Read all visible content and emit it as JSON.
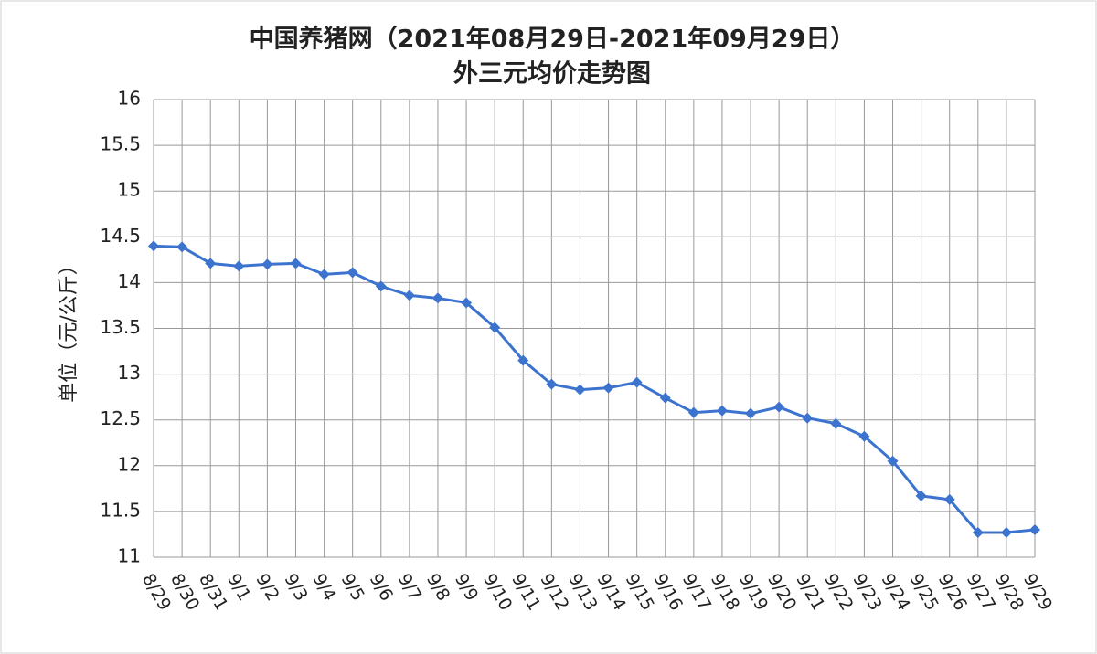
{
  "chart_data": {
    "type": "line",
    "title": "中国养猪网（2021年08月29日-2021年09月29日）",
    "subtitle": "外三元均价走势图",
    "y_label": "单位（元/公斤）",
    "categories": [
      "8/29",
      "8/30",
      "8/31",
      "9/1",
      "9/2",
      "9/3",
      "9/4",
      "9/5",
      "9/6",
      "9/7",
      "9/8",
      "9/9",
      "9/10",
      "9/11",
      "9/12",
      "9/13",
      "9/14",
      "9/15",
      "9/16",
      "9/17",
      "9/18",
      "9/19",
      "9/20",
      "9/21",
      "9/22",
      "9/23",
      "9/24",
      "9/25",
      "9/26",
      "9/27",
      "9/28",
      "9/29"
    ],
    "values": [
      14.4,
      14.39,
      14.21,
      14.18,
      14.2,
      14.21,
      14.09,
      14.11,
      13.96,
      13.86,
      13.83,
      13.78,
      13.51,
      13.15,
      12.89,
      12.83,
      12.85,
      12.91,
      12.74,
      12.58,
      12.6,
      12.57,
      12.64,
      12.52,
      12.46,
      12.32,
      12.05,
      11.67,
      11.63,
      11.27,
      11.27,
      11.3
    ],
    "color": "#3b73cf",
    "ylim": [
      11,
      16
    ],
    "yticks": [
      11,
      11.5,
      12,
      12.5,
      13,
      13.5,
      14,
      14.5,
      15,
      15.5,
      16
    ],
    "grid": true
  }
}
